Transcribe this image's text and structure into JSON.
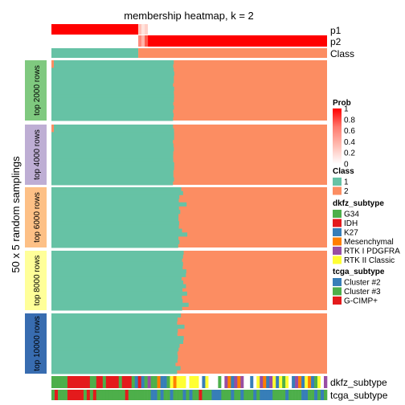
{
  "chart_data": {
    "type": "heatmap",
    "title": "membership heatmap, k = 2",
    "ylabel": "50 x 5 random samplings",
    "annotation_top": [
      "p1",
      "p2",
      "Class"
    ],
    "annotation_bottom": [
      "dkfz_subtype",
      "tcga_subtype"
    ],
    "row_groups": [
      "top 2000 rows",
      "top 4000 rows",
      "top 6000 rows",
      "top 8000 rows",
      "top 10000 rows"
    ],
    "row_group_colors": [
      "#7FC97F",
      "#BEAED4",
      "#FDC086",
      "#FFFF99",
      "#386CB0"
    ],
    "class_colors": {
      "1": "#66C2A5",
      "2": "#FC8D62"
    },
    "class1_fraction_by_group": [
      0.44,
      0.44,
      0.46,
      0.47,
      0.45
    ],
    "prob_legend": {
      "title": "Prob",
      "ticks": [
        "1",
        "0.8",
        "0.6",
        "0.4",
        "0.2",
        "0"
      ],
      "gradient_colors": [
        "#FF0000",
        "#FF7A6E",
        "#FFBDB3",
        "#FFFFFF"
      ]
    },
    "legends": [
      {
        "title": "Class",
        "items": [
          {
            "label": "1",
            "color": "#66C2A5"
          },
          {
            "label": "2",
            "color": "#FC8D62"
          }
        ]
      },
      {
        "title": "dkfz_subtype",
        "items": [
          {
            "label": "G34",
            "color": "#4DAF4A"
          },
          {
            "label": "IDH",
            "color": "#E41A1C"
          },
          {
            "label": "K27",
            "color": "#377EB8"
          },
          {
            "label": "Mesenchymal",
            "color": "#FF7F00"
          },
          {
            "label": "RTK I PDGFRA",
            "color": "#984EA3"
          },
          {
            "label": "RTK II Classic",
            "color": "#FFFF33"
          }
        ]
      },
      {
        "title": "tcga_subtype",
        "items": [
          {
            "label": "Cluster #2",
            "color": "#377EB8"
          },
          {
            "label": "Cluster #3",
            "color": "#4DAF4A"
          },
          {
            "label": "G-CIMP+",
            "color": "#E41A1C"
          }
        ]
      }
    ]
  }
}
